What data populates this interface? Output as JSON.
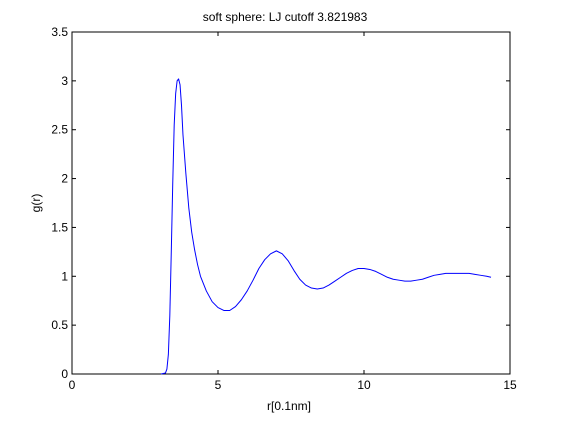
{
  "chart_data": {
    "type": "line",
    "title": "soft sphere: LJ cutoff 3.821983",
    "xlabel": "r[0.1nm]",
    "ylabel": "g(r)",
    "xlim": [
      0,
      15
    ],
    "ylim": [
      0,
      3.5
    ],
    "xticks": [
      0,
      5,
      10,
      15
    ],
    "yticks": [
      0,
      0.5,
      1,
      1.5,
      2,
      2.5,
      3,
      3.5
    ],
    "xtick_labels": [
      "0",
      "5",
      "10",
      "15"
    ],
    "ytick_labels": [
      "0",
      "0.5",
      "1",
      "1.5",
      "2",
      "2.5",
      "3",
      "3.5"
    ],
    "grid": false,
    "line_color": "#0000ff",
    "series": [
      {
        "x": [
          3.05,
          3.2,
          3.25,
          3.3,
          3.35,
          3.4,
          3.45,
          3.5,
          3.55,
          3.6,
          3.65,
          3.7,
          3.75,
          3.8,
          3.9,
          4.0,
          4.1,
          4.2,
          4.3,
          4.4,
          4.6,
          4.8,
          5.0,
          5.2,
          5.4,
          5.6,
          5.8,
          6.0,
          6.2,
          6.4,
          6.6,
          6.8,
          7.0,
          7.2,
          7.4,
          7.6,
          7.8,
          8.0,
          8.2,
          8.4,
          8.6,
          8.8,
          9.0,
          9.2,
          9.4,
          9.6,
          9.8,
          10.0,
          10.2,
          10.4,
          10.6,
          10.8,
          11.0,
          11.2,
          11.4,
          11.6,
          11.8,
          12.0,
          12.2,
          12.4,
          12.6,
          12.8,
          13.0,
          13.2,
          13.4,
          13.6,
          13.8,
          14.0,
          14.2,
          14.35
        ],
        "y": [
          0.0,
          0.01,
          0.05,
          0.2,
          0.6,
          1.25,
          1.95,
          2.55,
          2.87,
          3.0,
          3.02,
          2.96,
          2.75,
          2.45,
          2.05,
          1.7,
          1.45,
          1.27,
          1.12,
          1.0,
          0.85,
          0.74,
          0.68,
          0.65,
          0.65,
          0.69,
          0.76,
          0.85,
          0.96,
          1.08,
          1.17,
          1.23,
          1.26,
          1.23,
          1.16,
          1.06,
          0.97,
          0.91,
          0.88,
          0.87,
          0.88,
          0.91,
          0.95,
          0.99,
          1.03,
          1.06,
          1.08,
          1.08,
          1.07,
          1.05,
          1.02,
          0.99,
          0.97,
          0.96,
          0.95,
          0.95,
          0.96,
          0.97,
          0.99,
          1.01,
          1.02,
          1.03,
          1.03,
          1.03,
          1.03,
          1.03,
          1.02,
          1.01,
          1.0,
          0.99
        ]
      }
    ]
  }
}
